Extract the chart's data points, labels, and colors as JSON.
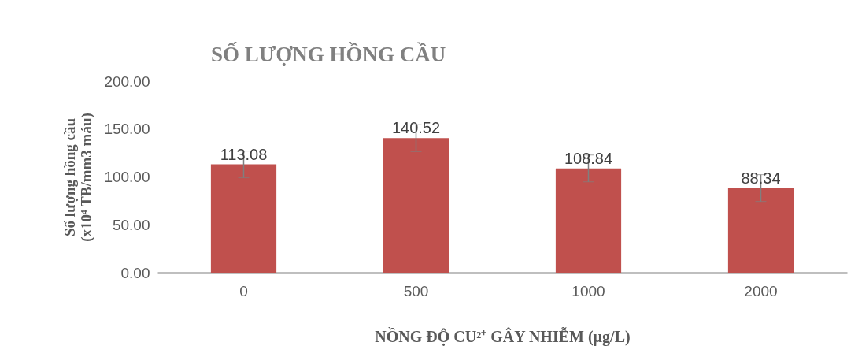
{
  "chart_data": {
    "type": "bar",
    "title": "SỐ LƯỢNG HỒNG CẦU",
    "xlabel": "NỒNG ĐỘ CU²⁺ GÂY NHIỄM (µg/L)",
    "ylabel": "Số lượng hồng cầu (x10⁴ TB/mm3 máu)",
    "categories": [
      "0",
      "500",
      "1000",
      "2000"
    ],
    "values": [
      113.08,
      140.52,
      108.84,
      88.34
    ],
    "errors": [
      14,
      14,
      14,
      14
    ],
    "color": "#c0504d",
    "ylim": [
      0,
      200
    ],
    "yticks": [
      {
        "value": 0,
        "label": "0.00"
      },
      {
        "value": 50,
        "label": "50.00"
      },
      {
        "value": 100,
        "label": "100.00"
      },
      {
        "value": 150,
        "label": "150.00"
      },
      {
        "value": 200,
        "label": "200.00"
      }
    ],
    "data_labels": true,
    "grid": false
  }
}
